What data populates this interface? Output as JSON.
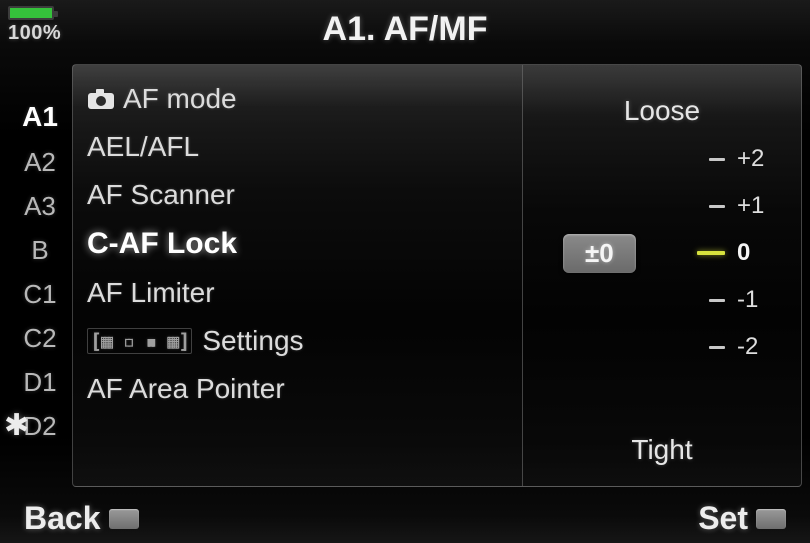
{
  "status": {
    "battery_pct_label": "100%",
    "battery_fill_pct": 100,
    "battery_fill_color": "#35c23b"
  },
  "title": "A1. AF/MF",
  "tabs": {
    "items": [
      "A1",
      "A2",
      "A3",
      "B",
      "C1",
      "C2",
      "D1",
      "D2"
    ],
    "active_index": 0
  },
  "menu": {
    "items": [
      {
        "label": "AF mode",
        "has_camera_icon": true
      },
      {
        "label": "AEL/AFL"
      },
      {
        "label": "AF Scanner"
      },
      {
        "label": "C-AF Lock"
      },
      {
        "label": "AF Limiter"
      },
      {
        "label": "Settings",
        "has_pattern_prefix": true
      },
      {
        "label": "AF Area Pointer"
      }
    ],
    "selected_index": 3
  },
  "value_panel": {
    "top_label": "Loose",
    "bottom_label": "Tight",
    "ticks": [
      "+2",
      "+1",
      "0",
      "-1",
      "-2"
    ],
    "current_index": 2,
    "current_display": "±0",
    "accent_color": "#d7e23e"
  },
  "footer": {
    "back_label": "Back",
    "set_label": "Set"
  },
  "colors": {
    "bg": "#000000",
    "text": "#e8e8e8",
    "panel_border": "#787878"
  }
}
